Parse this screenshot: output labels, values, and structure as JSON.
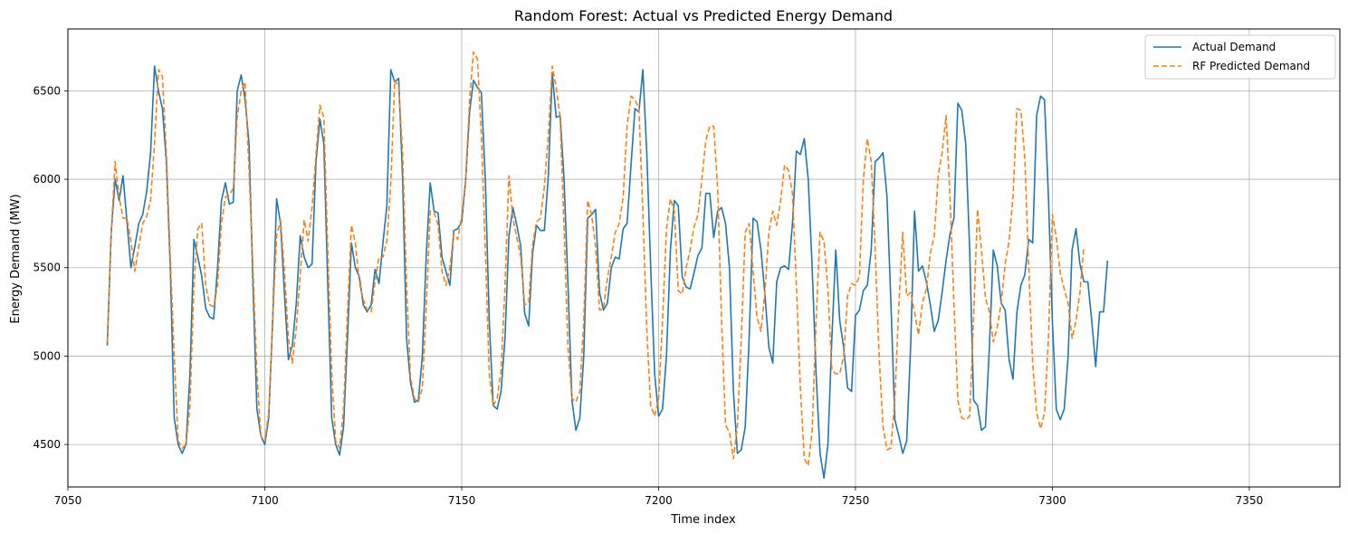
{
  "chart_data": {
    "type": "line",
    "title": "Random Forest: Actual vs Predicted Energy Demand",
    "xlabel": "Time index",
    "ylabel": "Energy Demand (MW)",
    "xlim": [
      7050,
      7373
    ],
    "ylim": [
      4260,
      6850
    ],
    "xticks": [
      7050,
      7100,
      7150,
      7200,
      7250,
      7300,
      7350
    ],
    "yticks": [
      4500,
      5000,
      5500,
      6000,
      6500
    ],
    "grid": true,
    "legend_position": "top-right",
    "x_start": 7060,
    "series": [
      {
        "name": "Actual Demand",
        "color": "#1f77b4",
        "style": "solid",
        "values": [
          5060,
          5700,
          6000,
          5880,
          6020,
          5760,
          5500,
          5620,
          5750,
          5800,
          5930,
          6150,
          6640,
          6500,
          6400,
          6100,
          5500,
          4650,
          4500,
          4450,
          4500,
          4900,
          5660,
          5560,
          5450,
          5270,
          5220,
          5210,
          5500,
          5880,
          5980,
          5860,
          5870,
          6500,
          6590,
          6450,
          6200,
          5400,
          4700,
          4550,
          4500,
          4650,
          5200,
          5890,
          5750,
          5350,
          4980,
          5060,
          5300,
          5680,
          5560,
          5500,
          5520,
          6100,
          6340,
          6200,
          5400,
          4650,
          4500,
          4440,
          4600,
          5100,
          5640,
          5500,
          5450,
          5290,
          5250,
          5290,
          5490,
          5410,
          5640,
          5850,
          6620,
          6550,
          6570,
          6000,
          5100,
          4850,
          4740,
          4750,
          5000,
          5570,
          5980,
          5820,
          5810,
          5560,
          5480,
          5400,
          5710,
          5720,
          5760,
          5990,
          6380,
          6560,
          6520,
          6490,
          6000,
          5200,
          4720,
          4700,
          4800,
          5100,
          5680,
          5840,
          5740,
          5620,
          5240,
          5170,
          5580,
          5740,
          5710,
          5710,
          6020,
          6600,
          6350,
          6360,
          6000,
          5400,
          4750,
          4580,
          4650,
          5000,
          5780,
          5800,
          5830,
          5360,
          5260,
          5300,
          5500,
          5560,
          5550,
          5720,
          5750,
          6080,
          6400,
          6380,
          6620,
          6150,
          5500,
          4900,
          4660,
          4700,
          5000,
          5600,
          5880,
          5850,
          5450,
          5390,
          5380,
          5470,
          5570,
          5610,
          5920,
          5920,
          5670,
          5820,
          5840,
          5750,
          5500,
          4800,
          4450,
          4470,
          4600,
          5100,
          5780,
          5760,
          5600,
          5350,
          5050,
          4960,
          5420,
          5500,
          5510,
          5490,
          5750,
          6160,
          6140,
          6230,
          6000,
          5500,
          4900,
          4450,
          4310,
          4500,
          5100,
          5600,
          5200,
          5050,
          4820,
          4800,
          5230,
          5260,
          5370,
          5400,
          5600,
          6100,
          6120,
          6150,
          5900,
          5300,
          4640,
          4550,
          4450,
          4520,
          5050,
          5820,
          5480,
          5510,
          5420,
          5290,
          5140,
          5200,
          5360,
          5540,
          5690,
          5780,
          6430,
          6390,
          6200,
          5600,
          4750,
          4720,
          4580,
          4600,
          5050,
          5600,
          5510,
          5300,
          5260,
          4980,
          4870,
          5250,
          5400,
          5460,
          5660,
          5640,
          6360,
          6470,
          6450,
          5900,
          5200,
          4700,
          4640,
          4700,
          5000,
          5600,
          5720,
          5520,
          5420,
          5420,
          5200,
          4940,
          5250,
          5250,
          5540
        ]
      },
      {
        "name": "RF Predicted Demand",
        "color": "#ff7f0e",
        "style": "dashed",
        "values": [
          5080,
          5700,
          6100,
          5900,
          5780,
          5780,
          5650,
          5480,
          5620,
          5750,
          5790,
          5880,
          6200,
          6620,
          6580,
          6150,
          5560,
          5000,
          4520,
          4480,
          4500,
          4720,
          5400,
          5720,
          5750,
          5400,
          5290,
          5280,
          5400,
          5750,
          5900,
          5910,
          5950,
          6350,
          6500,
          6550,
          6050,
          5500,
          4900,
          4550,
          4520,
          4680,
          5200,
          5680,
          5770,
          5480,
          5100,
          4960,
          5160,
          5460,
          5770,
          5650,
          5840,
          6140,
          6420,
          6350,
          5600,
          4900,
          4520,
          4480,
          4700,
          5250,
          5740,
          5640,
          5420,
          5320,
          5260,
          5250,
          5420,
          5560,
          5560,
          5650,
          5980,
          6560,
          6520,
          6150,
          5400,
          4880,
          4760,
          4740,
          4820,
          5280,
          5820,
          5810,
          5740,
          5480,
          5400,
          5500,
          5690,
          5660,
          5790,
          6000,
          6450,
          6720,
          6680,
          6250,
          5600,
          4900,
          4720,
          4760,
          4920,
          5390,
          6020,
          5780,
          5670,
          5560,
          5290,
          5300,
          5630,
          5760,
          5780,
          5960,
          6250,
          6640,
          6520,
          6350,
          5720,
          5050,
          4760,
          4740,
          4800,
          5200,
          5880,
          5800,
          5620,
          5260,
          5270,
          5440,
          5560,
          5700,
          5750,
          5900,
          6300,
          6470,
          6450,
          6400,
          5820,
          5150,
          4720,
          4660,
          4760,
          5200,
          5720,
          5890,
          5820,
          5370,
          5350,
          5500,
          5600,
          5730,
          5800,
          6000,
          6220,
          6300,
          6300,
          5950,
          5200,
          4610,
          4570,
          4420,
          4600,
          5100,
          5700,
          5750,
          5480,
          5220,
          5140,
          5360,
          5700,
          5820,
          5740,
          5880,
          6080,
          6050,
          5920,
          5400,
          4820,
          4420,
          4380,
          4580,
          5200,
          5700,
          5650,
          5380,
          4920,
          4900,
          4900,
          5000,
          5340,
          5410,
          5400,
          5450,
          6000,
          6230,
          6100,
          5600,
          5000,
          4600,
          4470,
          4480,
          4760,
          5280,
          5700,
          5340,
          5360,
          5250,
          5120,
          5300,
          5380,
          5580,
          5680,
          6020,
          6150,
          6360,
          5900,
          5300,
          4750,
          4650,
          4640,
          4660,
          5220,
          5830,
          5600,
          5330,
          5250,
          5080,
          5160,
          5300,
          5520,
          5650,
          5900,
          6400,
          6390,
          6120,
          5500,
          4960,
          4680,
          4590,
          4680,
          5100,
          5800,
          5670,
          5470,
          5380,
          5300,
          5100,
          5200,
          5360,
          5620
        ]
      }
    ]
  }
}
